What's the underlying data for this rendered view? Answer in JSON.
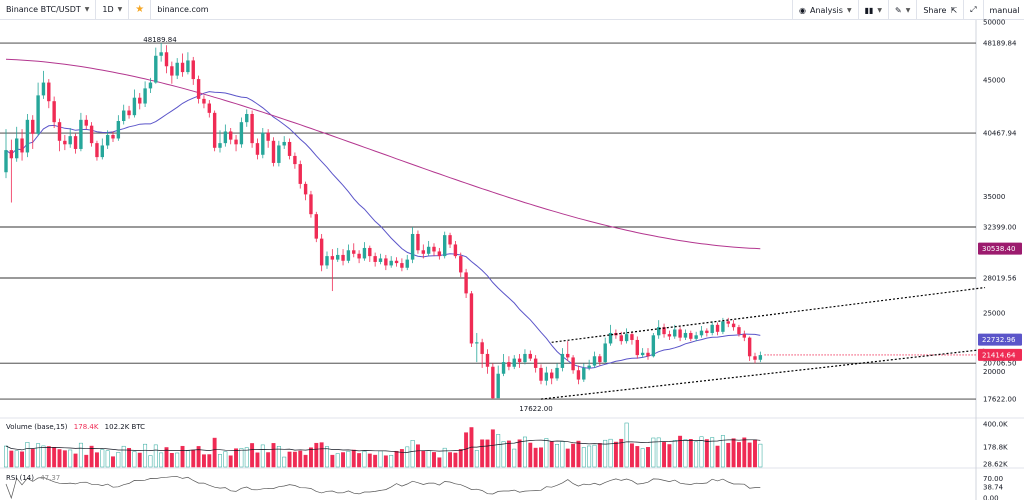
{
  "toolbar": {
    "symbol": "Binance BTC/USDT",
    "interval": "1D",
    "site": "binance.com",
    "analysis": "Analysis",
    "share": "Share",
    "user": "manual",
    "icons": [
      "chevron-down-icon",
      "star-icon",
      "eye-icon",
      "bar-style-icon",
      "pencil-icon",
      "share-icon",
      "fullscreen-icon"
    ]
  },
  "volume_label": {
    "name": "Volume (base,15)",
    "v1": "178.4K",
    "v2": "102.2K BTC"
  },
  "rsi_label": {
    "name": "RSI (14)",
    "v1": "47.37"
  },
  "colors": {
    "up": "#26a69a",
    "down": "#ef2b54",
    "ma_fast": "#5b55c9",
    "ma_slow": "#b3368f",
    "level": "#333333"
  },
  "chart_data": {
    "type": "candlestick",
    "price_axis": {
      "min": 16000,
      "max": 50000,
      "ticks": [
        "50000",
        "45000",
        "35000",
        "28019.56",
        "25000",
        "20000",
        "17622.00"
      ]
    },
    "horizontal_levels": [
      48189.84,
      40467.94,
      32399.0,
      28019.56,
      20706.5,
      17622.0
    ],
    "level_tick_labels": [
      "48189.84",
      "40467.94",
      "32399.00",
      "20706.50"
    ],
    "annotations": {
      "high": "48189.84",
      "low": "17622.00"
    },
    "price_tags": [
      {
        "value": 30538.4,
        "label": "30538.40",
        "color": "#9c1b6e"
      },
      {
        "value": 22732.96,
        "label": "22732.96",
        "color": "#5b55c9"
      },
      {
        "value": 21414.64,
        "label": "21414.64",
        "color": "#ef2b54"
      }
    ],
    "channel": {
      "upper": [
        {
          "x": 108,
          "price": 22500
        },
        {
          "x": 190,
          "price": 27200
        }
      ],
      "lower": [
        {
          "x": 106,
          "price": 17622
        },
        {
          "x": 190,
          "price": 21900
        }
      ]
    },
    "candles": [
      {
        "o": 37100,
        "c": 39000,
        "h": 40800,
        "l": 36600
      },
      {
        "o": 39000,
        "c": 38300,
        "h": 39900,
        "l": 34500
      },
      {
        "o": 38300,
        "c": 40000,
        "h": 41000,
        "l": 38000
      },
      {
        "o": 40000,
        "c": 38800,
        "h": 40800,
        "l": 38100
      },
      {
        "o": 38800,
        "c": 41600,
        "h": 42100,
        "l": 38400
      },
      {
        "o": 41600,
        "c": 40400,
        "h": 42000,
        "l": 39100
      },
      {
        "o": 40400,
        "c": 43700,
        "h": 44800,
        "l": 40200
      },
      {
        "o": 43700,
        "c": 44800,
        "h": 45800,
        "l": 43400
      },
      {
        "o": 44800,
        "c": 43200,
        "h": 45100,
        "l": 42600
      },
      {
        "o": 43200,
        "c": 41400,
        "h": 43600,
        "l": 40900
      },
      {
        "o": 41400,
        "c": 39800,
        "h": 41700,
        "l": 38900
      },
      {
        "o": 39800,
        "c": 39500,
        "h": 40300,
        "l": 39000
      },
      {
        "o": 39500,
        "c": 40200,
        "h": 40900,
        "l": 39200
      },
      {
        "o": 40200,
        "c": 39100,
        "h": 40400,
        "l": 38700
      },
      {
        "o": 39100,
        "c": 41600,
        "h": 42200,
        "l": 38900
      },
      {
        "o": 41600,
        "c": 41100,
        "h": 42000,
        "l": 40800
      },
      {
        "o": 41100,
        "c": 39600,
        "h": 41400,
        "l": 39300
      },
      {
        "o": 39600,
        "c": 38400,
        "h": 39800,
        "l": 38100
      },
      {
        "o": 38400,
        "c": 39400,
        "h": 40000,
        "l": 38200
      },
      {
        "o": 39400,
        "c": 40300,
        "h": 40700,
        "l": 39100
      },
      {
        "o": 40300,
        "c": 40000,
        "h": 40600,
        "l": 39700
      },
      {
        "o": 40000,
        "c": 41500,
        "h": 42000,
        "l": 39800
      },
      {
        "o": 41500,
        "c": 42400,
        "h": 42900,
        "l": 41200
      },
      {
        "o": 42400,
        "c": 42000,
        "h": 42800,
        "l": 41700
      },
      {
        "o": 42000,
        "c": 43500,
        "h": 44200,
        "l": 41800
      },
      {
        "o": 43500,
        "c": 43000,
        "h": 43900,
        "l": 42500
      },
      {
        "o": 43000,
        "c": 44300,
        "h": 44900,
        "l": 42700
      },
      {
        "o": 44300,
        "c": 44800,
        "h": 45200,
        "l": 43900
      },
      {
        "o": 44800,
        "c": 47100,
        "h": 47800,
        "l": 44700
      },
      {
        "o": 47100,
        "c": 47400,
        "h": 48189,
        "l": 46600
      },
      {
        "o": 47400,
        "c": 46200,
        "h": 48000,
        "l": 45600
      },
      {
        "o": 46200,
        "c": 45400,
        "h": 46600,
        "l": 44700
      },
      {
        "o": 45400,
        "c": 46500,
        "h": 46900,
        "l": 45100
      },
      {
        "o": 46500,
        "c": 45700,
        "h": 47300,
        "l": 45300
      },
      {
        "o": 45700,
        "c": 46700,
        "h": 47400,
        "l": 45500
      },
      {
        "o": 46700,
        "c": 45100,
        "h": 47000,
        "l": 44600
      },
      {
        "o": 45100,
        "c": 43400,
        "h": 45400,
        "l": 43000
      },
      {
        "o": 43400,
        "c": 43000,
        "h": 43700,
        "l": 42600
      },
      {
        "o": 43000,
        "c": 42200,
        "h": 43300,
        "l": 41800
      },
      {
        "o": 42200,
        "c": 39200,
        "h": 42400,
        "l": 38900
      },
      {
        "o": 39200,
        "c": 39600,
        "h": 40700,
        "l": 38800
      },
      {
        "o": 39600,
        "c": 40600,
        "h": 41200,
        "l": 39300
      },
      {
        "o": 40600,
        "c": 39900,
        "h": 40900,
        "l": 39500
      },
      {
        "o": 39900,
        "c": 39500,
        "h": 40300,
        "l": 38900
      },
      {
        "o": 39500,
        "c": 41400,
        "h": 41800,
        "l": 39200
      },
      {
        "o": 41400,
        "c": 42100,
        "h": 42500,
        "l": 41000
      },
      {
        "o": 42100,
        "c": 39600,
        "h": 42400,
        "l": 39200
      },
      {
        "o": 39600,
        "c": 38600,
        "h": 40000,
        "l": 38200
      },
      {
        "o": 38600,
        "c": 40500,
        "h": 40900,
        "l": 38300
      },
      {
        "o": 40500,
        "c": 39800,
        "h": 40800,
        "l": 39200
      },
      {
        "o": 39800,
        "c": 37900,
        "h": 40100,
        "l": 37600
      },
      {
        "o": 37900,
        "c": 39400,
        "h": 39800,
        "l": 37600
      },
      {
        "o": 39400,
        "c": 39700,
        "h": 40200,
        "l": 39100
      },
      {
        "o": 39700,
        "c": 38500,
        "h": 40000,
        "l": 38200
      },
      {
        "o": 38500,
        "c": 37800,
        "h": 38800,
        "l": 37400
      },
      {
        "o": 37800,
        "c": 36100,
        "h": 38100,
        "l": 35700
      },
      {
        "o": 36100,
        "c": 35200,
        "h": 36300,
        "l": 34700
      },
      {
        "o": 35200,
        "c": 33500,
        "h": 35500,
        "l": 33200
      },
      {
        "o": 33500,
        "c": 31400,
        "h": 33700,
        "l": 31100
      },
      {
        "o": 31400,
        "c": 29100,
        "h": 31800,
        "l": 28600
      },
      {
        "o": 29100,
        "c": 29900,
        "h": 30300,
        "l": 28800
      },
      {
        "o": 29900,
        "c": 29600,
        "h": 30500,
        "l": 26900
      },
      {
        "o": 29600,
        "c": 30000,
        "h": 30600,
        "l": 29400
      },
      {
        "o": 30000,
        "c": 29500,
        "h": 30500,
        "l": 29100
      },
      {
        "o": 29500,
        "c": 30400,
        "h": 30900,
        "l": 29300
      },
      {
        "o": 30400,
        "c": 30100,
        "h": 31000,
        "l": 29800
      },
      {
        "o": 30100,
        "c": 29700,
        "h": 30400,
        "l": 29300
      },
      {
        "o": 29700,
        "c": 30600,
        "h": 31100,
        "l": 29500
      },
      {
        "o": 30600,
        "c": 29900,
        "h": 30800,
        "l": 29400
      },
      {
        "o": 29900,
        "c": 29400,
        "h": 30200,
        "l": 29000
      },
      {
        "o": 29400,
        "c": 29700,
        "h": 30100,
        "l": 29200
      },
      {
        "o": 29700,
        "c": 29100,
        "h": 30000,
        "l": 28700
      },
      {
        "o": 29100,
        "c": 29500,
        "h": 29900,
        "l": 28900
      },
      {
        "o": 29500,
        "c": 29300,
        "h": 29800,
        "l": 29000
      },
      {
        "o": 29300,
        "c": 28900,
        "h": 29700,
        "l": 28600
      },
      {
        "o": 28900,
        "c": 29600,
        "h": 30000,
        "l": 28700
      },
      {
        "o": 29600,
        "c": 31800,
        "h": 32400,
        "l": 29300
      },
      {
        "o": 31800,
        "c": 30400,
        "h": 32100,
        "l": 30100
      },
      {
        "o": 30400,
        "c": 30100,
        "h": 30900,
        "l": 29700
      },
      {
        "o": 30100,
        "c": 30700,
        "h": 31200,
        "l": 29900
      },
      {
        "o": 30700,
        "c": 30300,
        "h": 31000,
        "l": 29900
      },
      {
        "o": 30300,
        "c": 29900,
        "h": 30600,
        "l": 29600
      },
      {
        "o": 29900,
        "c": 31700,
        "h": 32000,
        "l": 29700
      },
      {
        "o": 31700,
        "c": 30900,
        "h": 31900,
        "l": 30600
      },
      {
        "o": 30900,
        "c": 29900,
        "h": 31200,
        "l": 29700
      },
      {
        "o": 29900,
        "c": 28500,
        "h": 30200,
        "l": 28100
      },
      {
        "o": 28500,
        "c": 26700,
        "h": 28800,
        "l": 26300
      },
      {
        "o": 26700,
        "c": 22400,
        "h": 26900,
        "l": 22100
      },
      {
        "o": 22400,
        "c": 22500,
        "h": 23300,
        "l": 20800
      },
      {
        "o": 22500,
        "c": 21500,
        "h": 22800,
        "l": 20300
      },
      {
        "o": 21500,
        "c": 20400,
        "h": 21900,
        "l": 19800
      },
      {
        "o": 20400,
        "c": 17700,
        "h": 20700,
        "l": 17622
      },
      {
        "o": 17700,
        "c": 19800,
        "h": 20500,
        "l": 17900
      },
      {
        "o": 19800,
        "c": 20800,
        "h": 21500,
        "l": 19600
      },
      {
        "o": 20800,
        "c": 20400,
        "h": 21300,
        "l": 20100
      },
      {
        "o": 20400,
        "c": 21100,
        "h": 21400,
        "l": 20200
      },
      {
        "o": 21100,
        "c": 20800,
        "h": 21500,
        "l": 20300
      },
      {
        "o": 20800,
        "c": 21500,
        "h": 21900,
        "l": 20600
      },
      {
        "o": 21500,
        "c": 21100,
        "h": 21800,
        "l": 20900
      },
      {
        "o": 21100,
        "c": 20300,
        "h": 21400,
        "l": 19900
      },
      {
        "o": 20300,
        "c": 19200,
        "h": 20600,
        "l": 18900
      },
      {
        "o": 19200,
        "c": 19900,
        "h": 20400,
        "l": 18800
      },
      {
        "o": 19900,
        "c": 19400,
        "h": 20200,
        "l": 18900
      },
      {
        "o": 19400,
        "c": 20300,
        "h": 20700,
        "l": 19200
      },
      {
        "o": 20300,
        "c": 21500,
        "h": 22000,
        "l": 20000
      },
      {
        "o": 21500,
        "c": 21200,
        "h": 22600,
        "l": 20900
      },
      {
        "o": 21200,
        "c": 20100,
        "h": 21400,
        "l": 19800
      },
      {
        "o": 20100,
        "c": 19300,
        "h": 20500,
        "l": 18900
      },
      {
        "o": 19300,
        "c": 20300,
        "h": 20700,
        "l": 19100
      },
      {
        "o": 20300,
        "c": 20500,
        "h": 21000,
        "l": 20100
      },
      {
        "o": 20500,
        "c": 21300,
        "h": 21700,
        "l": 20300
      },
      {
        "o": 21300,
        "c": 20800,
        "h": 21500,
        "l": 20500
      },
      {
        "o": 20800,
        "c": 22400,
        "h": 22900,
        "l": 20700
      },
      {
        "o": 22400,
        "c": 23300,
        "h": 24000,
        "l": 22200
      },
      {
        "o": 23300,
        "c": 23100,
        "h": 23600,
        "l": 22800
      },
      {
        "o": 23100,
        "c": 22600,
        "h": 23400,
        "l": 22300
      },
      {
        "o": 22600,
        "c": 23200,
        "h": 23700,
        "l": 22400
      },
      {
        "o": 23200,
        "c": 22700,
        "h": 23400,
        "l": 22300
      },
      {
        "o": 22700,
        "c": 21400,
        "h": 23000,
        "l": 21100
      },
      {
        "o": 21400,
        "c": 21600,
        "h": 22000,
        "l": 21200
      },
      {
        "o": 21600,
        "c": 21300,
        "h": 22000,
        "l": 21000
      },
      {
        "o": 21300,
        "c": 23100,
        "h": 23300,
        "l": 21200
      },
      {
        "o": 23100,
        "c": 23800,
        "h": 24400,
        "l": 22800
      },
      {
        "o": 23800,
        "c": 23200,
        "h": 24100,
        "l": 22900
      },
      {
        "o": 23200,
        "c": 23000,
        "h": 23500,
        "l": 22700
      },
      {
        "o": 23000,
        "c": 23600,
        "h": 24000,
        "l": 22800
      },
      {
        "o": 23600,
        "c": 22900,
        "h": 23800,
        "l": 22600
      },
      {
        "o": 22900,
        "c": 23300,
        "h": 23600,
        "l": 22700
      },
      {
        "o": 23300,
        "c": 22800,
        "h": 23500,
        "l": 22600
      },
      {
        "o": 22800,
        "c": 23100,
        "h": 23400,
        "l": 22600
      },
      {
        "o": 23100,
        "c": 23500,
        "h": 23900,
        "l": 22900
      },
      {
        "o": 23500,
        "c": 23300,
        "h": 23700,
        "l": 23000
      },
      {
        "o": 23300,
        "c": 24000,
        "h": 24300,
        "l": 23100
      },
      {
        "o": 24000,
        "c": 23400,
        "h": 24200,
        "l": 23100
      },
      {
        "o": 23400,
        "c": 24300,
        "h": 24600,
        "l": 23200
      },
      {
        "o": 24300,
        "c": 24100,
        "h": 24600,
        "l": 23800
      },
      {
        "o": 24100,
        "c": 23800,
        "h": 24400,
        "l": 23500
      },
      {
        "o": 23800,
        "c": 23200,
        "h": 24000,
        "l": 23000
      },
      {
        "o": 23200,
        "c": 22900,
        "h": 23500,
        "l": 22600
      },
      {
        "o": 22900,
        "c": 21300,
        "h": 23000,
        "l": 20900
      },
      {
        "o": 21300,
        "c": 21000,
        "h": 21600,
        "l": 20700
      },
      {
        "o": 21000,
        "c": 21400,
        "h": 21700,
        "l": 20800
      }
    ],
    "volume_axis": {
      "ticks": [
        "400.0K",
        "178.8K",
        "28.62K"
      ]
    },
    "rsi_axis": {
      "ticks": [
        "70.00",
        "38.74",
        "0.00"
      ]
    }
  }
}
